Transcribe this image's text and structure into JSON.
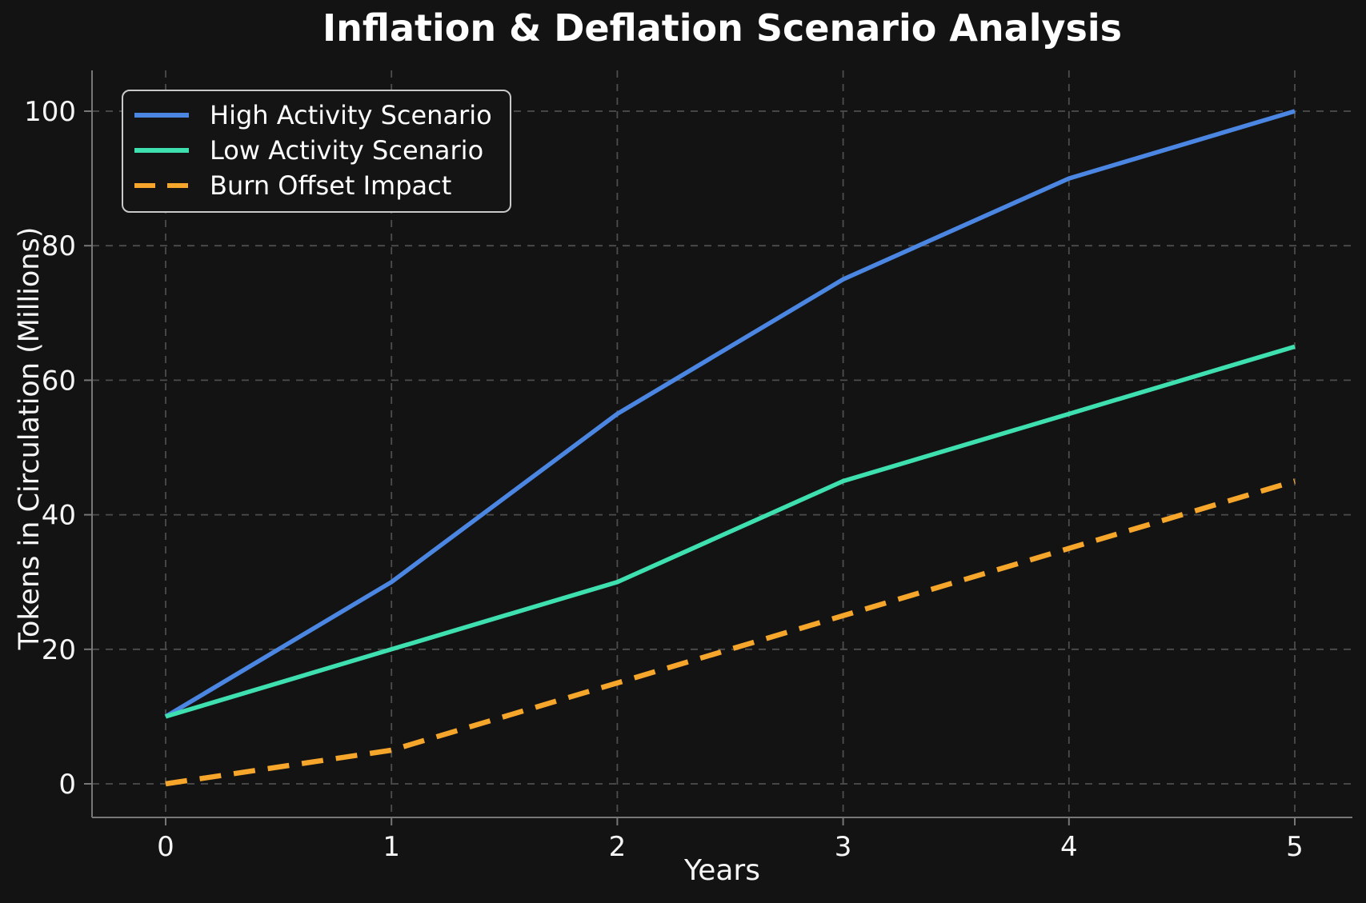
{
  "chart_data": {
    "type": "line",
    "title": "Inflation & Deflation Scenario Analysis",
    "xlabel": "Years",
    "ylabel": "Tokens in Circulation (Millions)",
    "x": [
      0,
      1,
      2,
      3,
      4,
      5
    ],
    "x_ticks": [
      "0",
      "1",
      "2",
      "3",
      "4",
      "5"
    ],
    "y_ticks": [
      "0",
      "20",
      "40",
      "60",
      "80",
      "100"
    ],
    "x_tick_values": [
      0,
      1,
      2,
      3,
      4,
      5
    ],
    "y_tick_values": [
      0,
      20,
      40,
      60,
      80,
      100
    ],
    "xlim": [
      -0.33,
      5.25
    ],
    "ylim": [
      -5,
      106
    ],
    "grid": true,
    "legend_position": "upper left",
    "series": [
      {
        "name": "High Activity Scenario",
        "color": "#4a86e2",
        "style": "solid",
        "values": [
          10,
          30,
          55,
          75,
          90,
          100
        ]
      },
      {
        "name": "Low Activity Scenario",
        "color": "#3fe0b0",
        "style": "solid",
        "values": [
          10,
          20,
          30,
          45,
          55,
          65
        ]
      },
      {
        "name": "Burn Offset Impact",
        "color": "#f5a62b",
        "style": "dashed",
        "values": [
          0,
          5,
          15,
          25,
          35,
          45
        ]
      }
    ]
  },
  "colors": {
    "background": "#131313",
    "text": "#f5f5f5",
    "grid": "#4d4d4d",
    "spine": "#777777",
    "legend_border": "#c9c9c9"
  }
}
